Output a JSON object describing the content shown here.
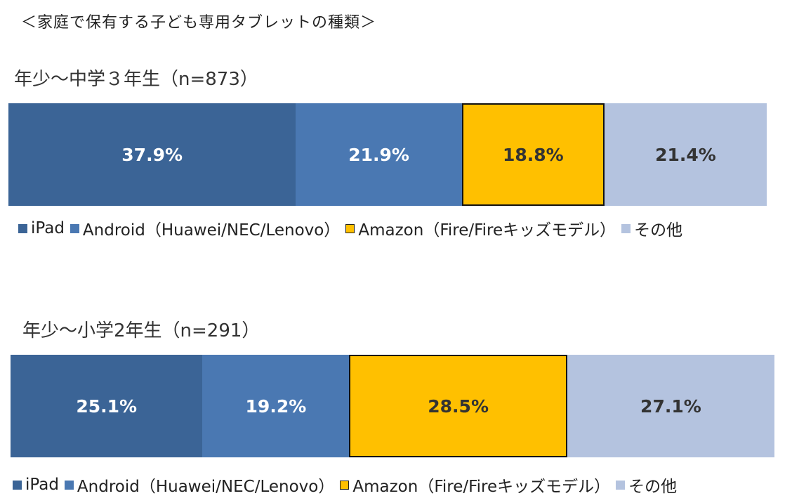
{
  "title": "＜家庭で保有する子ども専用タブレットの種類＞",
  "colors": {
    "ipad": "#3b6496",
    "android": "#4a78b2",
    "amazon": "#ffc000",
    "other": "#b4c3df"
  },
  "legend": [
    "iPad",
    "Android（Huawei/NEC/Lenovo）",
    "Amazon（Fire/Fireキッズモデル）",
    "その他"
  ],
  "chart_data": [
    {
      "type": "bar",
      "stacked": "100%",
      "orientation": "horizontal",
      "title": "年少〜中学３年生（n=873）",
      "series": [
        {
          "name": "iPad",
          "value": 37.9,
          "label": "37.9%"
        },
        {
          "name": "Android（Huawei/NEC/Lenovo）",
          "value": 21.9,
          "label": "21.9%"
        },
        {
          "name": "Amazon（Fire/Fireキッズモデル）",
          "value": 18.8,
          "label": "18.8%"
        },
        {
          "name": "その他",
          "value": 21.4,
          "label": "21.4%"
        }
      ],
      "legend_position": "bottom"
    },
    {
      "type": "bar",
      "stacked": "100%",
      "orientation": "horizontal",
      "title": "年少〜小学2年生（n=291）",
      "series": [
        {
          "name": "iPad",
          "value": 25.1,
          "label": "25.1%"
        },
        {
          "name": "Android（Huawei/NEC/Lenovo）",
          "value": 19.2,
          "label": "19.2%"
        },
        {
          "name": "Amazon（Fire/Fireキッズモデル）",
          "value": 28.5,
          "label": "28.5%"
        },
        {
          "name": "その他",
          "value": 27.1,
          "label": "27.1%"
        }
      ],
      "legend_position": "bottom"
    }
  ]
}
